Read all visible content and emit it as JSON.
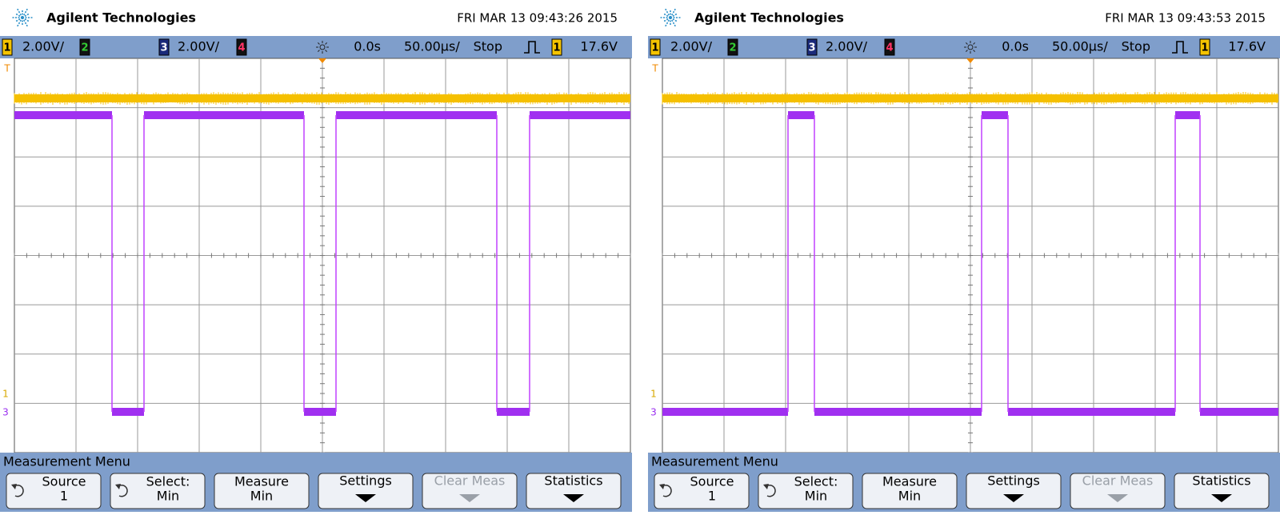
{
  "screens": [
    {
      "brand": "Agilent Technologies",
      "timestamp": "FRI MAR 13 09:43:26 2015",
      "status": {
        "ch1_badge": "1",
        "ch1_scale": "2.00V/",
        "ch2_badge": "2",
        "ch3_badge": "3",
        "ch3_scale": "2.00V/",
        "ch4_badge": "4",
        "delay": "0.0s",
        "timebase": "50.00µs/",
        "run_state": "Stop",
        "trigger_source": "1",
        "trigger_level": "17.6V"
      },
      "markers": {
        "trigger": "T",
        "ch1": "1",
        "ch3": "3"
      },
      "menu_title": "Measurement Menu",
      "softkeys": [
        {
          "label": "Source",
          "value": "1"
        },
        {
          "label": "Select:",
          "value": "Min"
        },
        {
          "label": "Measure",
          "value": "Min"
        },
        {
          "label": "Settings"
        },
        {
          "label": "Clear Meas"
        },
        {
          "label": "Statistics"
        }
      ]
    },
    {
      "brand": "Agilent Technologies",
      "timestamp": "FRI MAR 13 09:43:53 2015",
      "status": {
        "ch1_badge": "1",
        "ch1_scale": "2.00V/",
        "ch2_badge": "2",
        "ch3_badge": "3",
        "ch3_scale": "2.00V/",
        "ch4_badge": "4",
        "delay": "0.0s",
        "timebase": "50.00µs/",
        "run_state": "Stop",
        "trigger_source": "1",
        "trigger_level": "17.6V"
      },
      "markers": {
        "trigger": "T",
        "ch1": "1",
        "ch3": "3"
      },
      "menu_title": "Measurement Menu",
      "softkeys": [
        {
          "label": "Source",
          "value": "1"
        },
        {
          "label": "Select:",
          "value": "Min"
        },
        {
          "label": "Measure",
          "value": "Min"
        },
        {
          "label": "Settings"
        },
        {
          "label": "Clear Meas"
        },
        {
          "label": "Statistics"
        }
      ]
    }
  ]
}
